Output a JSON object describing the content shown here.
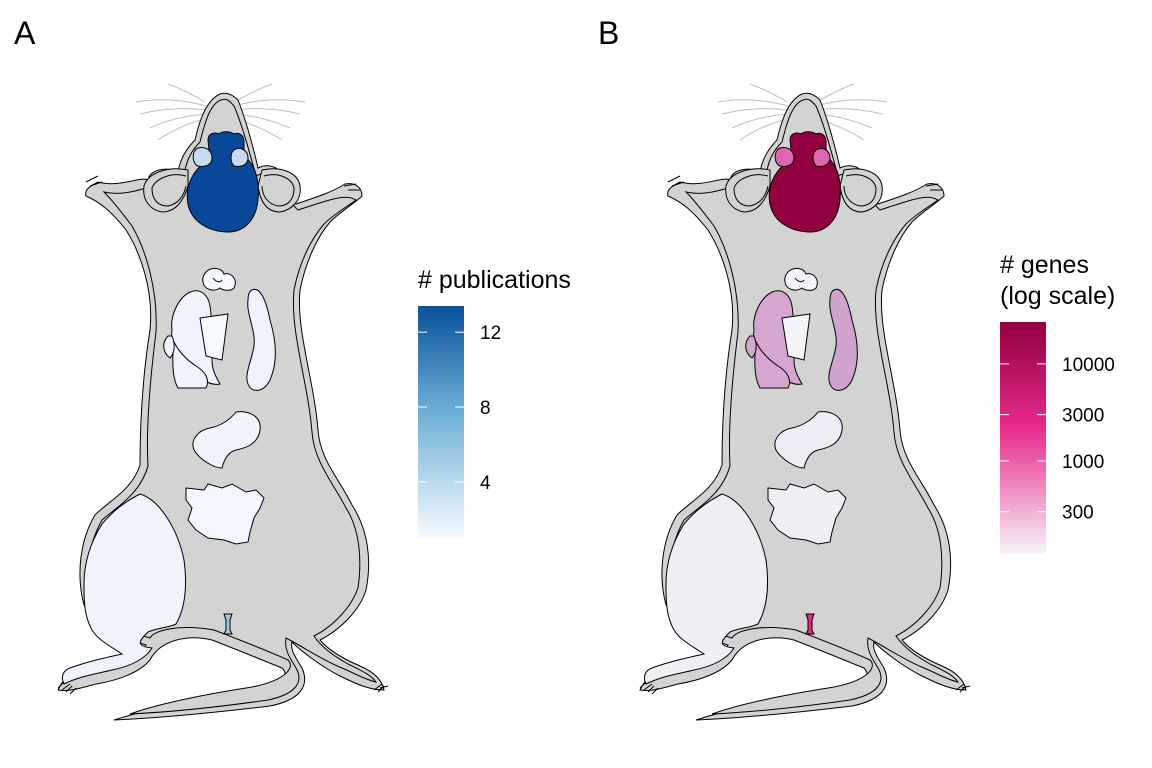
{
  "panels": [
    {
      "label": "A",
      "legend": {
        "title_lines": [
          "# publications"
        ],
        "ticks": [
          {
            "label": "12",
            "value": 12
          },
          {
            "label": "8",
            "value": 8
          },
          {
            "label": "4",
            "value": 4
          }
        ],
        "range": [
          1,
          13.4
        ],
        "scale": "linear",
        "color_low": "#f7fbff",
        "color_mid": "#6baed6",
        "color_high": "#08519c"
      },
      "organ_colors": {
        "brain": "#08489a",
        "eyes": "#c6dbef",
        "thymus": "#f5f8ff",
        "lungs": "#eef3fd",
        "heart": "#f7fbff",
        "spleen": "#eef3fd",
        "stomach": "#eff4fd",
        "intestine": "#f2f6fe",
        "leg_muscle": "#eef3fd",
        "bladder": "#9ecae1"
      }
    },
    {
      "label": "B",
      "legend": {
        "title_lines": [
          "# genes",
          "(log scale)"
        ],
        "ticks": [
          {
            "label": "10000",
            "value": 10000
          },
          {
            "label": "3000",
            "value": 3000
          },
          {
            "label": "1000",
            "value": 1000
          },
          {
            "label": "300",
            "value": 300
          }
        ],
        "range": [
          110,
          27000
        ],
        "scale": "log",
        "color_low": "#f7f4f9",
        "color_mid": "#e7298a",
        "color_high": "#91003f"
      },
      "organ_colors": {
        "brain": "#91003f",
        "eyes": "#df65b0",
        "thymus": "#f7f4f9",
        "lungs": "#d4a6d0",
        "heart": "#f7f4f9",
        "spleen": "#d0a3cf",
        "stomach": "#efedf5",
        "intestine": "#f1eef6",
        "leg_muscle": "#f1eff5",
        "bladder": "#e7298a"
      }
    }
  ],
  "colors": {
    "body_fill": "#d3d3d3",
    "outline": "#000000",
    "whisker": "#bdbdbd"
  }
}
